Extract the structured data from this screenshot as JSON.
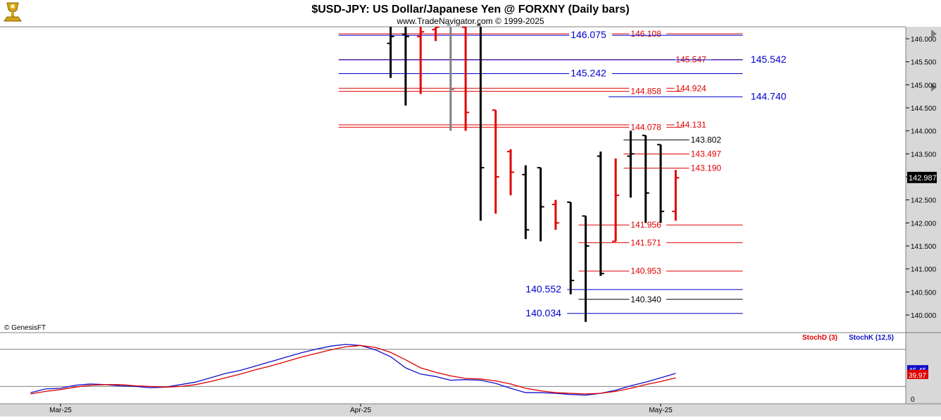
{
  "header": {
    "title": "$USD-JPY:  US Dollar/Japanese Yen @ FORXNY  (Daily bars)",
    "subtitle": "www.TradeNavigator.com © 1999-2025",
    "copyright": "© GenesisFT",
    "logo_icon": "golden-trophy-logo-icon"
  },
  "colors": {
    "up_bar": "#e00000",
    "down_bar": "#000000",
    "neutral_bar": "#808080",
    "level_red": "#e00000",
    "level_blue": "#0000cc",
    "level_black": "#000000",
    "stoch_d": "#dd0000",
    "stoch_k": "#1010cc",
    "axis_bg": "#d8d8d8",
    "frame": "#808080"
  },
  "chart_data": [
    {
      "type": "ohlc",
      "title": "$USD-JPY:  US Dollar/Japanese Yen @ FORXNY  (Daily bars)",
      "ylim": [
        139.75,
        146.35
      ],
      "y_ticks": [
        "146.000",
        "145.500",
        "145.000",
        "144.500",
        "144.000",
        "143.500",
        "143.000",
        "142.500",
        "142.000",
        "141.500",
        "141.000",
        "140.500",
        "140.000"
      ],
      "last_price": "142.987",
      "x_labels": [
        {
          "label": "Mar-25",
          "index": -20
        },
        {
          "label": "Apr-25",
          "index": 0
        },
        {
          "label": "May-25",
          "index": 20
        }
      ],
      "bars": [
        {
          "i": 2,
          "o": 145.9,
          "h": 146.4,
          "l": 145.15,
          "c": 146.05,
          "color": "down"
        },
        {
          "i": 3,
          "o": 146.1,
          "h": 146.4,
          "l": 144.55,
          "c": 146.05,
          "color": "down"
        },
        {
          "i": 4,
          "o": 146.05,
          "h": 146.3,
          "l": 144.8,
          "c": 146.15,
          "color": "up"
        },
        {
          "i": 5,
          "o": 146.2,
          "h": 146.25,
          "l": 145.95,
          "c": 146.25,
          "color": "up"
        },
        {
          "i": 6,
          "o": 146.3,
          "h": 146.35,
          "l": 144.0,
          "c": 144.9,
          "color": "neutral"
        },
        {
          "i": 7,
          "o": 146.25,
          "h": 146.3,
          "l": 144.0,
          "c": 144.4,
          "color": "up"
        },
        {
          "i": 8,
          "o": 146.3,
          "h": 146.3,
          "l": 142.05,
          "c": 143.2,
          "color": "down"
        },
        {
          "i": 9,
          "o": 144.45,
          "h": 144.45,
          "l": 142.2,
          "c": 143.0,
          "color": "up"
        },
        {
          "i": 10,
          "o": 143.55,
          "h": 143.6,
          "l": 142.6,
          "c": 143.1,
          "color": "up"
        },
        {
          "i": 11,
          "o": 143.05,
          "h": 143.25,
          "l": 141.65,
          "c": 141.85,
          "color": "down"
        },
        {
          "i": 12,
          "o": 143.2,
          "h": 143.2,
          "l": 141.6,
          "c": 142.35,
          "color": "down"
        },
        {
          "i": 13,
          "o": 142.4,
          "h": 142.5,
          "l": 141.85,
          "c": 142.0,
          "color": "up"
        },
        {
          "i": 14,
          "o": 142.45,
          "h": 142.45,
          "l": 140.45,
          "c": 140.75,
          "color": "down"
        },
        {
          "i": 15,
          "o": 142.15,
          "h": 142.15,
          "l": 139.85,
          "c": 141.5,
          "color": "down"
        },
        {
          "i": 16,
          "o": 143.45,
          "h": 143.55,
          "l": 140.85,
          "c": 140.9,
          "color": "down"
        },
        {
          "i": 17,
          "o": 141.6,
          "h": 143.4,
          "l": 141.6,
          "c": 142.6,
          "color": "up"
        },
        {
          "i": 18,
          "o": 143.45,
          "h": 144.0,
          "l": 142.55,
          "c": 143.5,
          "color": "down"
        },
        {
          "i": 19,
          "o": 143.9,
          "h": 143.9,
          "l": 142.0,
          "c": 142.65,
          "color": "down"
        },
        {
          "i": 20,
          "o": 143.7,
          "h": 143.7,
          "l": 142.0,
          "c": 142.25,
          "color": "down"
        },
        {
          "i": 21,
          "o": 142.25,
          "h": 143.15,
          "l": 142.05,
          "c": 142.98,
          "color": "up"
        }
      ],
      "levels": [
        {
          "value": 146.108,
          "label": "146.108",
          "color": "red",
          "x0": -1,
          "x1": 25,
          "label_at": 18
        },
        {
          "value": 146.075,
          "label": "146.075",
          "color": "blue",
          "x0": -1,
          "x1": 25,
          "label_at": 14,
          "big": true
        },
        {
          "value": 145.547,
          "label": "145.547",
          "color": "red",
          "x0": -1,
          "x1": 25,
          "label_at": 21
        },
        {
          "value": 145.542,
          "label": "145.542",
          "color": "blue",
          "x0": -1,
          "x1": 25,
          "label_at": 26,
          "big": true
        },
        {
          "value": 145.242,
          "label": "145.242",
          "color": "blue",
          "x0": -1,
          "x1": 25,
          "label_at": 14,
          "big": true
        },
        {
          "value": 144.924,
          "label": "144.924",
          "color": "red",
          "x0": -1,
          "x1": 21,
          "label_at": 21
        },
        {
          "value": 144.858,
          "label": "144.858",
          "color": "red",
          "x0": -1,
          "x1": 21,
          "label_at": 18
        },
        {
          "value": 144.74,
          "label": "144.740",
          "color": "blue",
          "x0": 17,
          "x1": 25,
          "label_at": 26,
          "big": true
        },
        {
          "value": 144.131,
          "label": "144.131",
          "color": "red",
          "x0": -1,
          "x1": 21,
          "label_at": 21
        },
        {
          "value": 144.078,
          "label": "144.078",
          "color": "red",
          "x0": -1,
          "x1": 21,
          "label_at": 18
        },
        {
          "value": 143.802,
          "label": "143.802",
          "color": "black",
          "x0": 18,
          "x1": 22,
          "label_at": 22
        },
        {
          "value": 143.497,
          "label": "143.497",
          "color": "red",
          "x0": 18,
          "x1": 22,
          "label_at": 22
        },
        {
          "value": 143.19,
          "label": "143.190",
          "color": "red",
          "x0": 18,
          "x1": 22,
          "label_at": 22
        },
        {
          "value": 141.956,
          "label": "141.956",
          "color": "red",
          "x0": 15,
          "x1": 25,
          "label_at": 18
        },
        {
          "value": 141.571,
          "label": "141.571",
          "color": "red",
          "x0": 15,
          "x1": 25,
          "label_at": 18
        },
        {
          "value": 140.953,
          "label": "140.953",
          "color": "red",
          "x0": 15,
          "x1": 25,
          "label_at": 18
        },
        {
          "value": 140.552,
          "label": "140.552",
          "color": "blue",
          "x0": 12,
          "x1": 25,
          "label_at": 11,
          "big": true
        },
        {
          "value": 140.34,
          "label": "140.340",
          "color": "black",
          "x0": 15,
          "x1": 25,
          "label_at": 18
        },
        {
          "value": 140.034,
          "label": "140.034",
          "color": "blue",
          "x0": 12,
          "x1": 25,
          "label_at": 11,
          "big": true
        }
      ]
    },
    {
      "type": "line",
      "legend": [
        "StochD (3)",
        "StochK (12,5)"
      ],
      "ylim": [
        0,
        100
      ],
      "y_ticks": [
        "0"
      ],
      "reference_lines": [
        80,
        20
      ],
      "last_values": {
        "stoch_k": "46.45",
        "stoch_d": "39.97"
      },
      "series": [
        {
          "name": "StochK (12,5)",
          "color": "blue",
          "x": [
            -22,
            -21,
            -20,
            -19,
            -18,
            -17,
            -16,
            -15,
            -14,
            -13,
            -12,
            -11,
            -10,
            -9,
            -8,
            -7,
            -6,
            -5,
            -4,
            -3,
            -2,
            -1,
            0,
            1,
            2,
            3,
            4,
            5,
            6,
            7,
            8,
            9,
            10,
            11,
            12,
            13,
            14,
            15,
            16,
            17,
            18,
            19,
            20,
            21
          ],
          "values": [
            10,
            16,
            17,
            22,
            24,
            23,
            21,
            20,
            18,
            19,
            23,
            27,
            34,
            41,
            46,
            53,
            60,
            67,
            74,
            80,
            85,
            88,
            86,
            79,
            68,
            50,
            40,
            36,
            30,
            31,
            30,
            25,
            17,
            10,
            10,
            9,
            7,
            6,
            9,
            14,
            21,
            27,
            34,
            41
          ]
        },
        {
          "name": "StochD (3)",
          "color": "red",
          "x": [
            -22,
            -21,
            -20,
            -19,
            -18,
            -17,
            -16,
            -15,
            -14,
            -13,
            -12,
            -11,
            -10,
            -9,
            -8,
            -7,
            -6,
            -5,
            -4,
            -3,
            -2,
            -1,
            0,
            1,
            2,
            3,
            4,
            5,
            6,
            7,
            8,
            9,
            10,
            11,
            12,
            13,
            14,
            15,
            16,
            17,
            18,
            19,
            20,
            21
          ],
          "values": [
            8,
            12,
            15,
            19,
            22,
            23,
            23,
            21,
            20,
            19,
            20,
            23,
            28,
            34,
            40,
            47,
            53,
            60,
            67,
            73,
            79,
            84,
            86,
            83,
            75,
            63,
            50,
            43,
            37,
            33,
            32,
            29,
            24,
            17,
            13,
            10,
            9,
            8,
            9,
            12,
            17,
            23,
            28,
            34
          ]
        }
      ]
    }
  ]
}
